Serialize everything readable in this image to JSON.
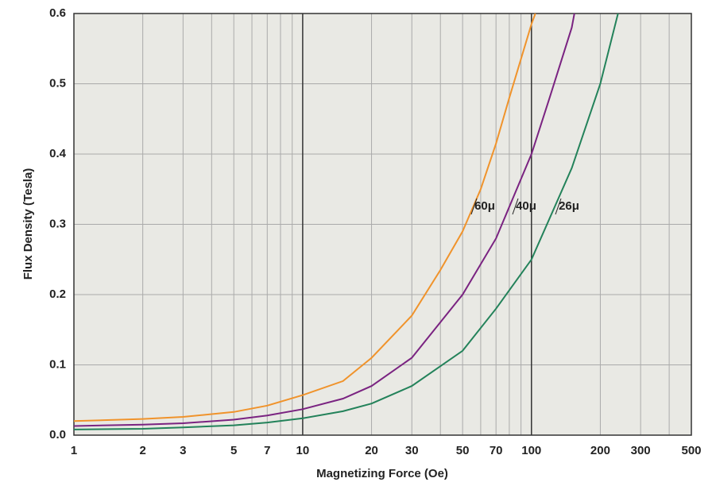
{
  "chart_data": {
    "type": "line",
    "xlabel": "Magnetizing Force (Oe)",
    "ylabel": "Flux Density (Tesla)",
    "xscale": "log",
    "xlim": [
      1,
      500
    ],
    "ylim": [
      0,
      0.6
    ],
    "xticks": [
      1,
      2,
      3,
      5,
      7,
      10,
      20,
      30,
      50,
      70,
      100,
      200,
      300,
      500
    ],
    "xminor": [
      4,
      6,
      8,
      9,
      40,
      60,
      80,
      90,
      400
    ],
    "yticks": [
      {
        "value": 0,
        "label": "0.0"
      },
      0.1,
      0.2,
      0.3,
      0.4,
      0.5,
      0.6
    ],
    "grid": true,
    "series": [
      {
        "name": "60μ",
        "color": "#f0932b",
        "x": [
          1,
          2,
          3,
          5,
          7,
          10,
          15,
          20,
          30,
          40,
          50,
          60,
          70,
          80,
          100,
          104
        ],
        "values": [
          0.02,
          0.023,
          0.026,
          0.033,
          0.042,
          0.057,
          0.077,
          0.11,
          0.17,
          0.235,
          0.29,
          0.35,
          0.415,
          0.48,
          0.585,
          0.6
        ]
      },
      {
        "name": "40μ",
        "color": "#7a2381",
        "x": [
          1,
          2,
          3,
          5,
          7,
          10,
          15,
          20,
          30,
          50,
          70,
          100,
          120,
          150,
          154
        ],
        "values": [
          0.013,
          0.015,
          0.017,
          0.022,
          0.028,
          0.037,
          0.052,
          0.07,
          0.11,
          0.2,
          0.28,
          0.4,
          0.48,
          0.58,
          0.6
        ]
      },
      {
        "name": "26μ",
        "color": "#23825a",
        "x": [
          1,
          2,
          3,
          5,
          7,
          10,
          15,
          20,
          30,
          50,
          70,
          100,
          150,
          200,
          239
        ],
        "values": [
          0.008,
          0.009,
          0.011,
          0.014,
          0.018,
          0.024,
          0.034,
          0.045,
          0.07,
          0.12,
          0.18,
          0.25,
          0.38,
          0.5,
          0.6
        ]
      }
    ]
  }
}
